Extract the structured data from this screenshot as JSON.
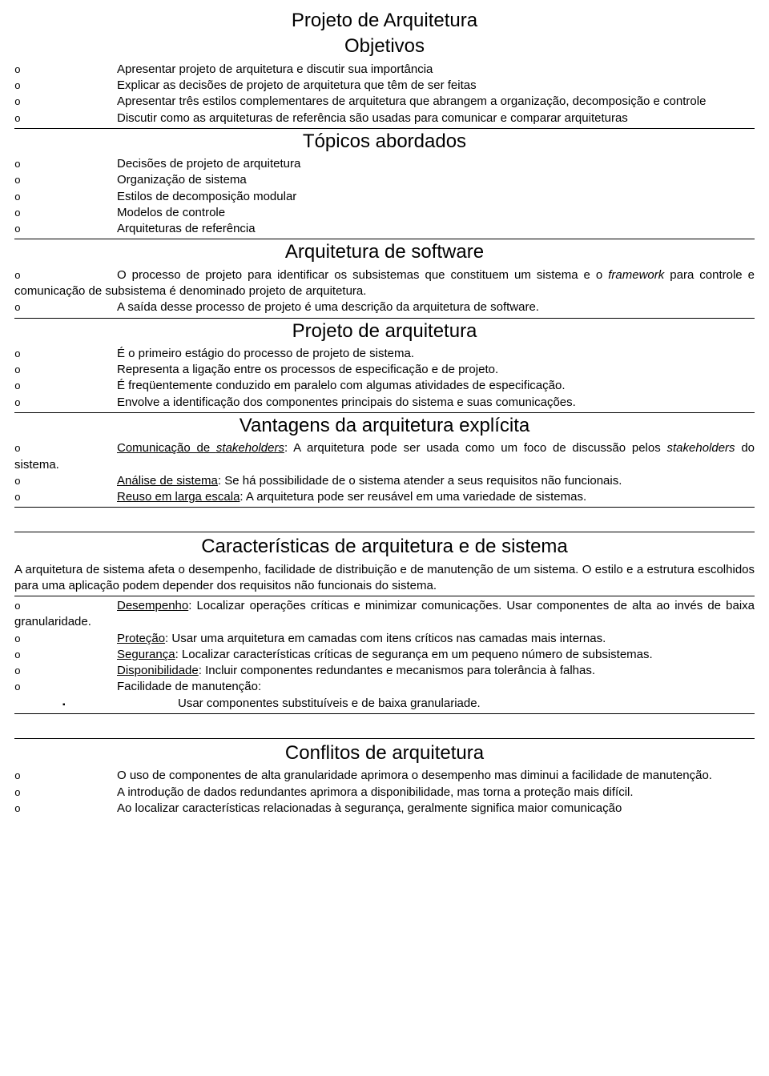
{
  "title": "Projeto de Arquitetura",
  "headings": {
    "objetivos": "Objetivos",
    "topicos": "Tópicos abordados",
    "arqsoft": "Arquitetura de software",
    "projarq": "Projeto de arquitetura",
    "vantagens": "Vantagens da arquitetura explícita",
    "caract": "Características de arquitetura e de sistema",
    "conflitos": "Conflitos de arquitetura"
  },
  "objetivos": [
    "Apresentar projeto de arquitetura e discutir sua importância",
    "Explicar as decisões de projeto de arquitetura que têm de ser feitas",
    "Apresentar três estilos complementares de arquitetura que abrangem a organização, decomposição e controle",
    "Discutir como as arquiteturas de referência são usadas para comunicar e comparar arquiteturas"
  ],
  "topicos": [
    "Decisões de projeto de arquitetura",
    "Organização de sistema",
    "Estilos de decomposição modular",
    "Modelos de controle",
    "Arquiteturas de referência"
  ],
  "arqsoft": {
    "i1a": "O processo de projeto para identificar os subsistemas que constituem um sistema e o ",
    "i1b": "framework",
    "i1c": " para controle e comunicação de subsistema é denominado projeto de arquitetura.",
    "i2": "A saída desse processo de projeto é uma descrição da arquitetura de software."
  },
  "projarq": [
    "É o primeiro estágio do processo de projeto de sistema.",
    "Representa a ligação entre os processos de especificação e de projeto.",
    "É freqüentemente conduzido em paralelo com algumas atividades de especificação.",
    "Envolve a identificação dos componentes principais do sistema e suas comunicações."
  ],
  "vantagens": {
    "i1a": "Comunicação de ",
    "i1b": "stakeholders",
    "i1c": ": A arquitetura pode ser usada como um foco de discussão pelos ",
    "i1d": "stakeholders",
    "i1e": " do sistema.",
    "i2a": "Análise de sistema",
    "i2b": ": Se há possibilidade de o sistema atender a seus requisitos não funcionais.",
    "i3a": "Reuso em larga escala",
    "i3b": ": A arquitetura pode ser reusável em uma variedade de sistemas."
  },
  "caract": {
    "intro": "A arquitetura de sistema afeta o desempenho, facilidade de distribuição e de manutenção de um sistema. O estilo e a estrutura escolhidos para uma aplicação podem depender dos requisitos não funcionais do sistema.",
    "i1a": "Desempenho",
    "i1b": ": Localizar operações críticas e minimizar comunicações. Usar componentes de alta ao invés de baixa granularidade.",
    "i2a": "Proteção",
    "i2b": ": Usar uma arquitetura em camadas com itens críticos nas camadas mais internas.",
    "i3a": "Segurança",
    "i3b": ": Localizar características críticas de segurança em um pequeno número de subsistemas.",
    "i4a": "Disponibilidade",
    "i4b": ": Incluir componentes redundantes e mecanismos para tolerância à falhas.",
    "i5": "Facilidade de manutenção:",
    "sub1": "Usar componentes substituíveis e de baixa granulariade."
  },
  "conflitos": {
    "i1": "O uso de componentes de alta granularidade aprimora o desempenho mas diminui a facilidade de manutenção.",
    "i2": "A introdução de dados redundantes aprimora a disponibilidade, mas torna a proteção mais difícil.",
    "i3": "Ao localizar características relacionadas à segurança, geralmente significa maior comunicação"
  }
}
